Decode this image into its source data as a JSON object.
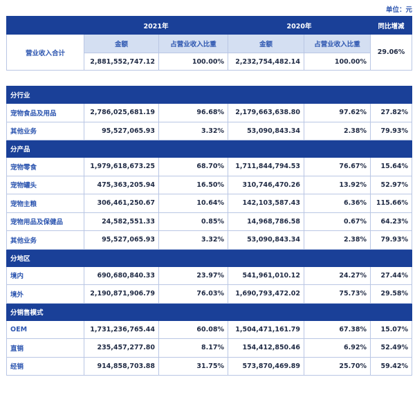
{
  "unit_label": "单位：元",
  "header": {
    "year_2021": "2021年",
    "year_2020": "2020年",
    "yoy": "同比增减",
    "row_label": "营业收入合计",
    "amount": "金额",
    "share": "占营业收入比重",
    "total_2021_amount": "2,881,552,747.12",
    "total_2021_share": "100.00%",
    "total_2020_amount": "2,232,754,482.14",
    "total_2020_share": "100.00%",
    "total_yoy": "29.06%"
  },
  "sections": [
    {
      "title": "分行业",
      "rows": [
        {
          "label": "宠物食品及用品",
          "a21": "2,786,025,681.19",
          "s21": "96.68%",
          "a20": "2,179,663,638.80",
          "s20": "97.62%",
          "yoy": "27.82%"
        },
        {
          "label": "其他业务",
          "a21": "95,527,065.93",
          "s21": "3.32%",
          "a20": "53,090,843.34",
          "s20": "2.38%",
          "yoy": "79.93%"
        }
      ]
    },
    {
      "title": "分产品",
      "rows": [
        {
          "label": "宠物零食",
          "a21": "1,979,618,673.25",
          "s21": "68.70%",
          "a20": "1,711,844,794.53",
          "s20": "76.67%",
          "yoy": "15.64%"
        },
        {
          "label": "宠物罐头",
          "a21": "475,363,205.94",
          "s21": "16.50%",
          "a20": "310,746,470.26",
          "s20": "13.92%",
          "yoy": "52.97%"
        },
        {
          "label": "宠物主粮",
          "a21": "306,461,250.67",
          "s21": "10.64%",
          "a20": "142,103,587.43",
          "s20": "6.36%",
          "yoy": "115.66%"
        },
        {
          "label": "宠物用品及保健品",
          "a21": "24,582,551.33",
          "s21": "0.85%",
          "a20": "14,968,786.58",
          "s20": "0.67%",
          "yoy": "64.23%"
        },
        {
          "label": "其他业务",
          "a21": "95,527,065.93",
          "s21": "3.32%",
          "a20": "53,090,843.34",
          "s20": "2.38%",
          "yoy": "79.93%"
        }
      ]
    },
    {
      "title": "分地区",
      "rows": [
        {
          "label": "境内",
          "a21": "690,680,840.33",
          "s21": "23.97%",
          "a20": "541,961,010.12",
          "s20": "24.27%",
          "yoy": "27.44%"
        },
        {
          "label": "境外",
          "a21": "2,190,871,906.79",
          "s21": "76.03%",
          "a20": "1,690,793,472.02",
          "s20": "75.73%",
          "yoy": "29.58%"
        }
      ]
    },
    {
      "title": "分销售模式",
      "rows": [
        {
          "label": "OEM",
          "a21": "1,731,236,765.44",
          "s21": "60.08%",
          "a20": "1,504,471,161.79",
          "s20": "67.38%",
          "yoy": "15.07%"
        },
        {
          "label": "直销",
          "a21": "235,457,277.80",
          "s21": "8.17%",
          "a20": "154,412,850.46",
          "s20": "6.92%",
          "yoy": "52.49%"
        },
        {
          "label": "经销",
          "a21": "914,858,703.88",
          "s21": "31.75%",
          "a20": "573,870,469.89",
          "s20": "25.70%",
          "yoy": "59.42%"
        }
      ]
    }
  ]
}
